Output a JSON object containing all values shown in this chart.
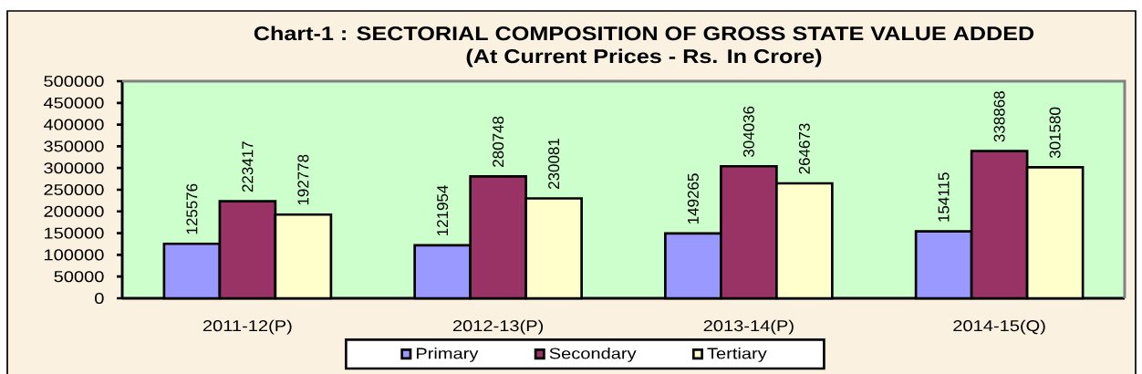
{
  "chart_data": {
    "type": "bar",
    "title": "Chart-1 : SECTORIAL COMPOSITION OF GROSS STATE VALUE ADDED",
    "subtitle": "(At Current Prices - Rs. In Crore)",
    "categories": [
      "2011-12(P)",
      "2012-13(P)",
      "2013-14(P)",
      "2014-15(Q)"
    ],
    "series": [
      {
        "name": "Primary",
        "color": "#9999ff",
        "values": [
          125576,
          121954,
          149265,
          154115
        ]
      },
      {
        "name": "Secondary",
        "color": "#993366",
        "values": [
          223417,
          280748,
          304036,
          338868
        ]
      },
      {
        "name": "Tertiary",
        "color": "#ffffcc",
        "values": [
          192778,
          230081,
          264673,
          301580
        ]
      }
    ],
    "ylim": [
      0,
      500000
    ],
    "yticks": [
      0,
      50000,
      100000,
      150000,
      200000,
      250000,
      300000,
      350000,
      400000,
      450000,
      500000
    ],
    "legend": "bottom",
    "data_labels": true
  }
}
